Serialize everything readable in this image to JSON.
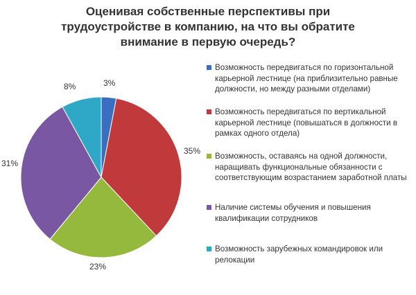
{
  "chart_data": {
    "type": "pie",
    "title": "Оценивая собственные перспективы при трудоустройстве в компанию, на что вы обратите внимание в первую очередь?",
    "slices": [
      {
        "label": "Возможность передвигаться по горизонтальной карьерной лестнице (на приблизительно равные должности, но между разными отделами)",
        "value": 3,
        "value_label": "3%",
        "color": "#3a6fbf"
      },
      {
        "label": "Возможность передвигаться по вертикальной карьерной лестнице (повышаться в должности в рамках одного отдела)",
        "value": 35,
        "value_label": "35%",
        "color": "#c0393b"
      },
      {
        "label": "Возможность, оставаясь на одной должности, наращивать функциональные обязанности с соответствующим возрастанием заработной платы",
        "value": 23,
        "value_label": "23%",
        "color": "#95b93c"
      },
      {
        "label": "Наличие системы обучения и повышения квалификации сотрудников",
        "value": 31,
        "value_label": "31%",
        "color": "#7a57a3"
      },
      {
        "label": "Возможность зарубежных командировок или релокации",
        "value": 8,
        "value_label": "8%",
        "color": "#2fa7c7"
      }
    ],
    "legend_position": "right"
  }
}
